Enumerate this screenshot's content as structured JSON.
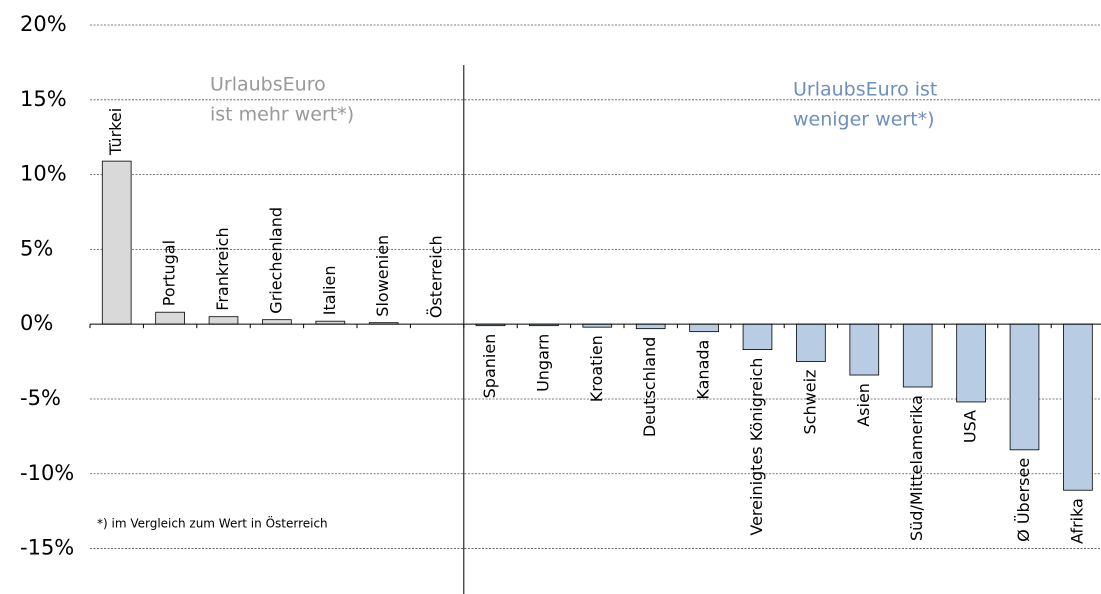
{
  "chart_data": {
    "type": "bar",
    "categories": [
      "Türkei",
      "Portugal",
      "Frankreich",
      "Griechenland",
      "Italien",
      "Slowenien",
      "Österreich",
      "Spanien",
      "Ungarn",
      "Kroatien",
      "Deutschland",
      "Kanada",
      "Vereinigtes Königreich",
      "Schweiz",
      "Asien",
      "Süd/Mittelamerika",
      "USA",
      "Ø Übersee",
      "Afrika"
    ],
    "values": [
      10.9,
      0.8,
      0.5,
      0.3,
      0.2,
      0.1,
      0,
      -0.1,
      -0.1,
      -0.2,
      -0.3,
      -0.5,
      -1.7,
      -2.5,
      -3.4,
      -4.2,
      -5.2,
      -8.4,
      -11.1
    ],
    "positive_color": "#d9d9d9",
    "negative_color": "#b8cce4",
    "ylim": [
      -16.5,
      20
    ],
    "yticks": [
      {
        "value": 20,
        "label": "20%"
      },
      {
        "value": 15,
        "label": "15%"
      },
      {
        "value": 10,
        "label": "10%"
      },
      {
        "value": 5,
        "label": "5%"
      },
      {
        "value": 0,
        "label": "0%"
      },
      {
        "value": -5,
        "label": "-5%"
      },
      {
        "value": -10,
        "label": "-10%"
      },
      {
        "value": -15,
        "label": "-15%"
      }
    ],
    "grid": true,
    "annotations": {
      "left": [
        "UrlaubsEuro",
        "ist mehr wert*)"
      ],
      "right": [
        "UrlaubsEuro ist",
        "weniger wert*)"
      ],
      "footnote": "*) im Vergleich zum Wert in Österreich"
    }
  }
}
